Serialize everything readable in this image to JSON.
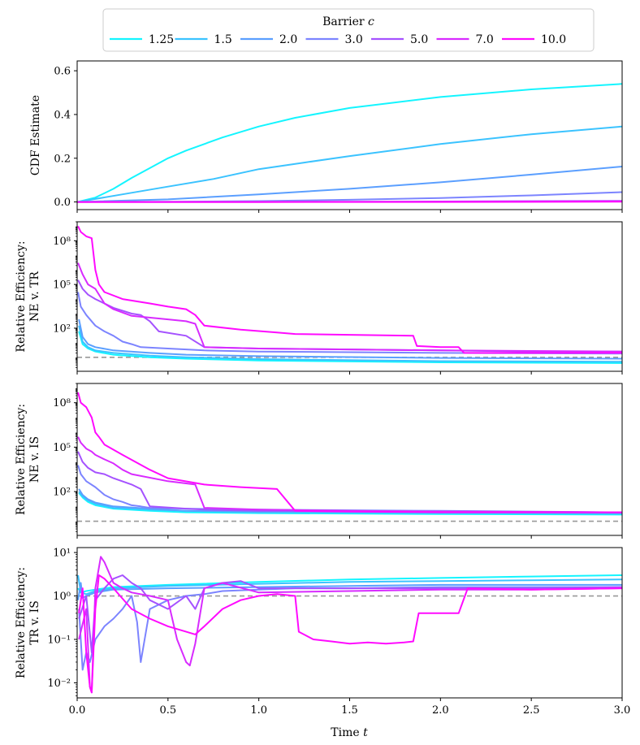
{
  "legend": {
    "title_prefix": "Barrier ",
    "title_var": "c",
    "placement": "top-center"
  },
  "xaxis": {
    "label_prefix": "Time ",
    "label_var": "t",
    "range": [
      0,
      3
    ],
    "ticks": [
      0.0,
      0.5,
      1.0,
      1.5,
      2.0,
      2.5,
      3.0
    ],
    "tick_labels": [
      "0.0",
      "0.5",
      "1.0",
      "1.5",
      "2.0",
      "2.5",
      "3.0"
    ]
  },
  "chart_data": [
    {
      "type": "line",
      "panel": "cdf",
      "ylabel_lines": [
        "CDF Estimate"
      ],
      "yscale": "linear",
      "ylim": [
        -0.035,
        0.645
      ],
      "yticks": [
        0.0,
        0.2,
        0.4,
        0.6
      ],
      "ytick_labels": [
        "0.0",
        "0.2",
        "0.4",
        "0.6"
      ],
      "series": [
        {
          "name": "1.25",
          "color": "#14f5ff",
          "x": [
            0,
            0.1,
            0.2,
            0.3,
            0.4,
            0.5,
            0.6,
            0.8,
            1.0,
            1.2,
            1.5,
            2.0,
            2.5,
            3.0
          ],
          "y": [
            0,
            0.02,
            0.06,
            0.11,
            0.155,
            0.2,
            0.235,
            0.295,
            0.345,
            0.385,
            0.43,
            0.48,
            0.515,
            0.54
          ]
        },
        {
          "name": "1.5",
          "color": "#3bc3ff",
          "x": [
            0,
            0.25,
            0.5,
            0.75,
            1.0,
            1.25,
            1.5,
            2.0,
            2.5,
            3.0
          ],
          "y": [
            0,
            0.035,
            0.07,
            0.105,
            0.15,
            0.18,
            0.21,
            0.265,
            0.31,
            0.345
          ]
        },
        {
          "name": "2.0",
          "color": "#5b9fff",
          "x": [
            0,
            0.5,
            1.0,
            1.5,
            2.0,
            2.5,
            3.0
          ],
          "y": [
            0,
            0.012,
            0.035,
            0.06,
            0.09,
            0.125,
            0.162
          ]
        },
        {
          "name": "3.0",
          "color": "#7c84ff",
          "x": [
            0,
            0.5,
            1.0,
            1.5,
            2.0,
            2.5,
            3.0
          ],
          "y": [
            0,
            0.001,
            0.004,
            0.01,
            0.018,
            0.03,
            0.045
          ]
        },
        {
          "name": "5.0",
          "color": "#a552ff",
          "x": [
            0,
            1.0,
            2.0,
            3.0
          ],
          "y": [
            0,
            0.0,
            0.002,
            0.005
          ]
        },
        {
          "name": "7.0",
          "color": "#d82bff",
          "x": [
            0,
            1.0,
            2.0,
            3.0
          ],
          "y": [
            0,
            0.0,
            0.001,
            0.003
          ]
        },
        {
          "name": "10.0",
          "color": "#ff0aff",
          "x": [
            0,
            1.0,
            2.0,
            3.0
          ],
          "y": [
            0,
            0.0,
            0.0,
            0.001
          ]
        }
      ],
      "reference_lines": []
    },
    {
      "type": "line",
      "panel": "ne-vs-tr",
      "ylabel_lines": [
        "Relative Efficiency:",
        "NE v. TR"
      ],
      "yscale": "log",
      "ylim": [
        0.11,
        2000000000.0
      ],
      "yticks": [
        100,
        100000,
        100000000
      ],
      "ytick_labels": [
        "10²",
        "10⁵",
        "10⁸"
      ],
      "series": [
        {
          "name": "1.25",
          "color": "#14f5ff",
          "x": [
            0.01,
            0.03,
            0.06,
            0.1,
            0.2,
            0.4,
            0.6,
            1.0,
            2.0,
            3.0
          ],
          "y": [
            60,
            8,
            4,
            2.5,
            1.5,
            1.0,
            0.8,
            0.6,
            0.45,
            0.4
          ]
        },
        {
          "name": "1.5",
          "color": "#3bc3ff",
          "x": [
            0.01,
            0.03,
            0.06,
            0.1,
            0.2,
            0.4,
            0.6,
            1.0,
            2.0,
            3.0
          ],
          "y": [
            150,
            12,
            5,
            3,
            2,
            1.3,
            1,
            0.75,
            0.55,
            0.5
          ]
        },
        {
          "name": "2.0",
          "color": "#5b9fff",
          "x": [
            0.01,
            0.03,
            0.06,
            0.1,
            0.2,
            0.4,
            0.6,
            1.0,
            2.0,
            3.0
          ],
          "y": [
            400,
            25,
            8,
            5,
            3,
            2,
            1.5,
            1.2,
            0.9,
            0.8
          ]
        },
        {
          "name": "3.0",
          "color": "#7c84ff",
          "x": [
            0.005,
            0.02,
            0.05,
            0.1,
            0.15,
            0.2,
            0.25,
            0.3,
            0.35,
            0.5,
            0.6,
            0.7,
            1.0,
            2.0,
            3.0
          ],
          "y": [
            30000,
            3000,
            800,
            150,
            60,
            30,
            12,
            8,
            5,
            4,
            3.5,
            3,
            2.5,
            2,
            1.8
          ]
        },
        {
          "name": "5.0",
          "color": "#a552ff",
          "x": [
            0.005,
            0.03,
            0.06,
            0.1,
            0.2,
            0.3,
            0.35,
            0.4,
            0.45,
            0.6,
            0.7,
            1.0,
            1.5,
            2.0,
            2.5,
            3.0
          ],
          "y": [
            200000.0,
            50000.0,
            20000,
            10000,
            2500,
            1000,
            800,
            300,
            60,
            30,
            5,
            4,
            3.5,
            3,
            2.5,
            2.5
          ]
        },
        {
          "name": "7.0",
          "color": "#d82bff",
          "x": [
            0.005,
            0.03,
            0.06,
            0.1,
            0.15,
            0.2,
            0.3,
            0.5,
            0.6,
            0.65,
            0.7,
            1.0,
            1.5,
            2.0,
            3.0
          ],
          "y": [
            3000000.0,
            500000.0,
            100000.0,
            50000,
            5000,
            2000,
            700,
            400,
            300,
            200,
            5,
            4,
            3.5,
            3,
            2.5
          ]
        },
        {
          "name": "10.0",
          "color": "#ff0aff",
          "x": [
            0.005,
            0.02,
            0.05,
            0.08,
            0.1,
            0.12,
            0.15,
            0.25,
            0.4,
            0.5,
            0.6,
            0.65,
            0.7,
            0.9,
            1.1,
            1.2,
            1.5,
            1.85,
            1.87,
            2.0,
            2.1,
            2.13,
            2.5,
            3.0
          ],
          "y": [
            1000000000.0,
            400000000.0,
            200000000.0,
            150000000.0,
            1000000.0,
            100000.0,
            30000,
            10000,
            5000,
            3000,
            2000,
            800,
            150,
            80,
            50,
            40,
            35,
            30,
            6,
            5,
            5,
            2,
            2,
            2
          ]
        }
      ],
      "reference_lines": [
        {
          "y": 1.0,
          "color": "#999999",
          "dashed": true
        }
      ]
    },
    {
      "type": "line",
      "panel": "ne-vs-is",
      "ylabel_lines": [
        "Relative Efficiency:",
        "NE v. IS"
      ],
      "yscale": "log",
      "ylim": [
        0.11,
        2000000000.0
      ],
      "yticks": [
        100,
        100000,
        100000000
      ],
      "ytick_labels": [
        "10²",
        "10⁵",
        "10⁸"
      ],
      "series": [
        {
          "name": "1.25",
          "color": "#14f5ff",
          "x": [
            0.01,
            0.03,
            0.06,
            0.1,
            0.2,
            0.4,
            0.6,
            1.0,
            2.0,
            3.0
          ],
          "y": [
            80,
            40,
            20,
            12,
            7,
            5,
            4,
            3.5,
            3,
            2.8
          ]
        },
        {
          "name": "1.5",
          "color": "#3bc3ff",
          "x": [
            0.01,
            0.03,
            0.06,
            0.1,
            0.2,
            0.4,
            0.6,
            1.0,
            2.0,
            3.0
          ],
          "y": [
            100,
            50,
            25,
            15,
            8,
            6,
            5,
            4,
            3.5,
            3.2
          ]
        },
        {
          "name": "2.0",
          "color": "#5b9fff",
          "x": [
            0.01,
            0.03,
            0.06,
            0.1,
            0.2,
            0.4,
            0.6,
            1.0,
            2.0,
            3.0
          ],
          "y": [
            150,
            60,
            30,
            18,
            10,
            7,
            5,
            4.5,
            4,
            3.5
          ]
        },
        {
          "name": "3.0",
          "color": "#7c84ff",
          "x": [
            0.005,
            0.02,
            0.05,
            0.1,
            0.15,
            0.2,
            0.25,
            0.3,
            0.35,
            0.4,
            0.6,
            1.0,
            2.0,
            3.0
          ],
          "y": [
            6000,
            1500,
            500,
            200,
            60,
            30,
            20,
            12,
            10,
            8,
            7,
            6,
            5,
            4
          ]
        },
        {
          "name": "5.0",
          "color": "#a552ff",
          "x": [
            0.005,
            0.03,
            0.06,
            0.1,
            0.15,
            0.2,
            0.3,
            0.35,
            0.4,
            0.6,
            0.7,
            1.0,
            2.0,
            3.0
          ],
          "y": [
            50000,
            10000,
            4000,
            2000,
            1500,
            800,
            300,
            150,
            10,
            7,
            6,
            5,
            4.5,
            4
          ]
        },
        {
          "name": "7.0",
          "color": "#d82bff",
          "x": [
            0.005,
            0.02,
            0.05,
            0.08,
            0.1,
            0.15,
            0.2,
            0.25,
            0.3,
            0.5,
            0.65,
            0.7,
            1.0,
            1.5,
            2.0,
            3.0
          ],
          "y": [
            500000.0,
            200000.0,
            80000,
            50000,
            30000,
            15000,
            8000,
            3000,
            1500,
            500,
            300,
            8,
            6,
            5,
            4.5,
            4
          ]
        },
        {
          "name": "10.0",
          "color": "#ff0aff",
          "x": [
            0.005,
            0.02,
            0.05,
            0.08,
            0.1,
            0.12,
            0.15,
            0.25,
            0.4,
            0.5,
            0.7,
            0.9,
            1.1,
            1.2,
            1.5,
            2.0,
            3.0
          ],
          "y": [
            500000000.0,
            100000000.0,
            50000000.0,
            10000000.0,
            1000000.0,
            500000.0,
            150000.0,
            30000,
            3000,
            800,
            300,
            200,
            150,
            5,
            4.5,
            4,
            4
          ]
        }
      ],
      "reference_lines": [
        {
          "y": 1.0,
          "color": "#999999",
          "dashed": true
        }
      ]
    },
    {
      "type": "line",
      "panel": "tr-vs-is",
      "ylabel_lines": [
        "Relative Efficiency:",
        "TR v. IS"
      ],
      "yscale": "log",
      "ylim": [
        0.0045,
        13
      ],
      "yticks": [
        0.01,
        0.1,
        1,
        10
      ],
      "ytick_labels": [
        "10⁻²",
        "10⁻¹",
        "10⁰",
        "10¹"
      ],
      "series": [
        {
          "name": "1.25",
          "color": "#14f5ff",
          "x": [
            0.005,
            0.02,
            0.05,
            0.1,
            0.2,
            0.5,
            1.0,
            1.5,
            2.0,
            2.5,
            3.0
          ],
          "y": [
            1.5,
            1.2,
            1.3,
            1.4,
            1.6,
            1.8,
            2.1,
            2.4,
            2.6,
            2.8,
            3.0
          ]
        },
        {
          "name": "1.5",
          "color": "#3bc3ff",
          "x": [
            0.005,
            0.02,
            0.05,
            0.1,
            0.2,
            0.5,
            1.0,
            1.5,
            2.0,
            2.5,
            3.0
          ],
          "y": [
            3.0,
            1.2,
            1.1,
            1.3,
            1.5,
            1.7,
            1.9,
            2.1,
            2.2,
            2.3,
            2.4
          ]
        },
        {
          "name": "2.0",
          "color": "#5b9fff",
          "x": [
            0.005,
            0.02,
            0.03,
            0.05,
            0.1,
            0.2,
            0.5,
            1.0,
            1.5,
            2.0,
            2.5,
            3.0
          ],
          "y": [
            0.8,
            2.0,
            0.9,
            1.0,
            1.2,
            1.4,
            1.5,
            1.6,
            1.7,
            1.8,
            1.8,
            1.8
          ]
        },
        {
          "name": "3.0",
          "color": "#7c84ff",
          "x": [
            0.01,
            0.03,
            0.05,
            0.07,
            0.1,
            0.15,
            0.2,
            0.25,
            0.3,
            0.33,
            0.35,
            0.4,
            0.5,
            0.6,
            0.7,
            0.8,
            1.0,
            1.2,
            1.5,
            2.0,
            2.5,
            3.0
          ],
          "y": [
            0.5,
            0.02,
            0.05,
            0.03,
            0.1,
            0.2,
            0.3,
            0.5,
            1.0,
            0.25,
            0.03,
            0.5,
            0.8,
            1.0,
            1.1,
            1.3,
            1.4,
            1.5,
            1.5,
            1.6,
            1.6,
            1.6
          ]
        },
        {
          "name": "5.0",
          "color": "#a552ff",
          "x": [
            0.01,
            0.05,
            0.08,
            0.1,
            0.15,
            0.2,
            0.25,
            0.3,
            0.35,
            0.4,
            0.5,
            0.6,
            0.65,
            0.7,
            0.8,
            0.9,
            1.0,
            1.5,
            2.0,
            2.5,
            3.0
          ],
          "y": [
            0.3,
            1.0,
            0.05,
            0.8,
            1.5,
            2.5,
            3.0,
            2.0,
            1.5,
            0.8,
            0.5,
            1.0,
            0.5,
            1.5,
            2.0,
            2.2,
            1.5,
            1.5,
            1.5,
            1.5,
            1.6
          ]
        },
        {
          "name": "7.0",
          "color": "#d82bff",
          "x": [
            0.01,
            0.05,
            0.07,
            0.08,
            0.1,
            0.13,
            0.15,
            0.2,
            0.25,
            0.3,
            0.4,
            0.5,
            0.55,
            0.6,
            0.62,
            0.65,
            0.7,
            0.8,
            1.0,
            1.5,
            2.0,
            2.5,
            3.0
          ],
          "y": [
            0.1,
            0.5,
            0.008,
            0.006,
            1.5,
            8.0,
            6.0,
            2.0,
            1.5,
            1.2,
            1.0,
            0.8,
            0.1,
            0.03,
            0.025,
            0.08,
            1.5,
            2.0,
            1.2,
            1.3,
            1.4,
            1.4,
            1.5
          ]
        },
        {
          "name": "10.0",
          "color": "#ff0aff",
          "x": [
            0.01,
            0.03,
            0.05,
            0.07,
            0.08,
            0.1,
            0.12,
            0.15,
            0.2,
            0.3,
            0.4,
            0.5,
            0.6,
            0.65,
            0.7,
            0.8,
            0.9,
            1.0,
            1.1,
            1.2,
            1.22,
            1.3,
            1.4,
            1.5,
            1.6,
            1.7,
            1.8,
            1.85,
            1.88,
            2.0,
            2.1,
            2.15,
            2.5,
            3.0
          ],
          "y": [
            0.4,
            1.5,
            0.05,
            0.008,
            0.006,
            0.5,
            3.0,
            2.5,
            1.5,
            0.5,
            0.3,
            0.2,
            0.15,
            0.13,
            0.2,
            0.5,
            0.8,
            1.0,
            1.1,
            1.0,
            0.15,
            0.1,
            0.09,
            0.08,
            0.085,
            0.08,
            0.085,
            0.09,
            0.4,
            0.4,
            0.4,
            1.5,
            1.4,
            1.5
          ]
        }
      ],
      "reference_lines": [
        {
          "y": 1.0,
          "color": "#999999",
          "dashed": true
        }
      ]
    }
  ]
}
